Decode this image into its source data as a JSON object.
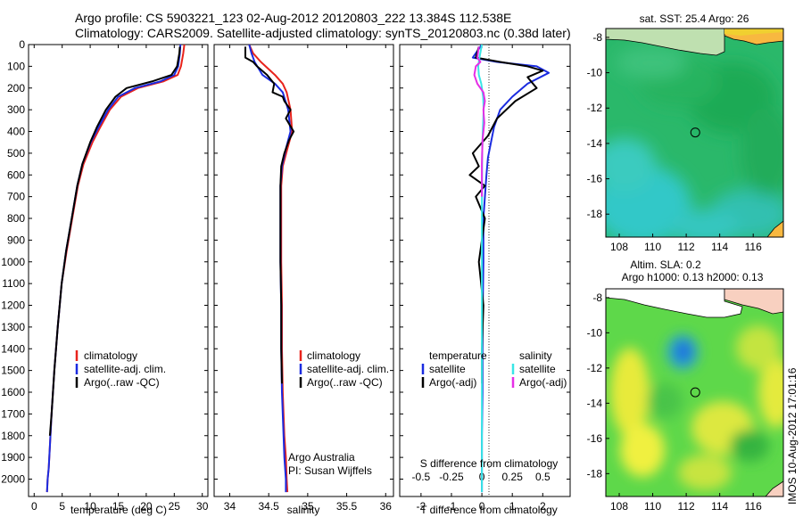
{
  "header": {
    "line1": "Argo profile: CS 5903221_123 02-Aug-2012 20120803_222 13.384S 112.538E",
    "line2": "Climatology: CARS2009. Satellite-adjusted climatology: synTS_20120803.nc (0.38d later)"
  },
  "credit": {
    "text1": "Argo Australia",
    "text2": "PI: Susan Wijffels",
    "stamp": "IMOS 10-Aug-2012 17:01:16"
  },
  "colors": {
    "climatology": "#e8231c",
    "satellite": "#1a2be0",
    "argo": "#000000",
    "sal_satellite": "#39e6e6",
    "sal_argo": "#e62ee6"
  },
  "chart_data": [
    {
      "type": "line",
      "xlabel": "temperature (deg C)",
      "ylabel": "",
      "xlim": [
        -1,
        31
      ],
      "ylim": [
        2080,
        0
      ],
      "xticks": [
        "0",
        "5",
        "10",
        "15",
        "20",
        "25",
        "30"
      ],
      "yticks": [
        "0",
        "100",
        "200",
        "300",
        "400",
        "500",
        "600",
        "700",
        "800",
        "900",
        "1000",
        "1100",
        "1200",
        "1300",
        "1400",
        "1500",
        "1600",
        "1700",
        "1800",
        "1900",
        "2000"
      ],
      "legend": {
        "placement": "middle-left",
        "entries": [
          "climatology",
          "satellite-adj. clim.",
          "Argo(..raw -QC)"
        ]
      },
      "series": [
        {
          "name": "climatology",
          "color": "#e8231c",
          "x": [
            26.8,
            26.6,
            26.2,
            25.6,
            23.0,
            18.5,
            15.5,
            13.5,
            11.8,
            10.4,
            8.8,
            7.8,
            6.8,
            5.8,
            4.9,
            4.2,
            3.6,
            3.1,
            2.8,
            2.6,
            2.4,
            2.3
          ],
          "y": [
            0,
            40,
            100,
            140,
            170,
            200,
            240,
            300,
            380,
            450,
            550,
            650,
            800,
            950,
            1100,
            1300,
            1500,
            1700,
            1850,
            1950,
            2000,
            2060
          ]
        },
        {
          "name": "satellite-adj. clim.",
          "color": "#1a2be0",
          "x": [
            26.1,
            26.0,
            25.7,
            25.0,
            22.5,
            18.0,
            15.0,
            13.2,
            11.5,
            10.1,
            8.6,
            7.7,
            6.7,
            5.7,
            4.9,
            4.2,
            3.6,
            3.1,
            2.8,
            2.6,
            2.4,
            2.3
          ],
          "y": [
            0,
            40,
            100,
            140,
            170,
            200,
            240,
            300,
            380,
            450,
            550,
            650,
            800,
            950,
            1100,
            1300,
            1500,
            1700,
            1850,
            1950,
            2000,
            2060
          ]
        },
        {
          "name": "Argo(..raw -QC)",
          "color": "#000000",
          "x": [
            26.0,
            25.9,
            25.5,
            24.5,
            21.0,
            16.5,
            14.5,
            12.8,
            11.2,
            10.0,
            8.6,
            7.7,
            6.7,
            5.7,
            4.9,
            4.2,
            3.6,
            3.1,
            2.8
          ],
          "y": [
            10,
            40,
            100,
            140,
            170,
            200,
            240,
            300,
            380,
            450,
            550,
            650,
            800,
            950,
            1100,
            1300,
            1500,
            1700,
            1800
          ]
        }
      ]
    },
    {
      "type": "line",
      "xlabel": "salinity",
      "ylabel": "",
      "xlim": [
        33.8,
        36.1
      ],
      "ylim": [
        2080,
        0
      ],
      "xticks": [
        "34",
        "34.5",
        "35",
        "35.5",
        "36"
      ],
      "legend": {
        "placement": "middle-left",
        "entries": [
          "climatology",
          "satellite-adj. clim.",
          "Argo(..raw -QC)"
        ]
      },
      "series": [
        {
          "name": "climatology",
          "color": "#e8231c",
          "x": [
            34.25,
            34.3,
            34.4,
            34.58,
            34.68,
            34.73,
            34.78,
            34.8,
            34.74,
            34.68,
            34.66,
            34.66,
            34.66,
            34.67,
            34.67,
            34.68,
            34.7,
            34.72,
            34.73,
            34.74
          ],
          "y": [
            0,
            40,
            80,
            140,
            180,
            220,
            300,
            400,
            480,
            560,
            650,
            800,
            1000,
            1200,
            1400,
            1600,
            1800,
            1900,
            2000,
            2060
          ]
        },
        {
          "name": "satellite-adj. clim.",
          "color": "#1a2be0",
          "x": [
            34.25,
            34.28,
            34.32,
            34.42,
            34.58,
            34.68,
            34.75,
            34.78,
            34.72,
            34.67,
            34.65,
            34.65,
            34.65,
            34.66,
            34.66,
            34.67,
            34.69,
            34.7,
            34.72,
            34.72
          ],
          "y": [
            0,
            40,
            80,
            140,
            180,
            220,
            300,
            400,
            480,
            560,
            650,
            800,
            1000,
            1200,
            1400,
            1600,
            1800,
            1900,
            2000,
            2060
          ]
        },
        {
          "name": "Argo(..raw -QC)",
          "color": "#000000",
          "x": [
            34.2,
            34.2,
            34.3,
            34.35,
            34.48,
            34.57,
            34.55,
            34.68,
            34.7,
            34.78,
            34.72,
            34.82,
            34.76,
            34.7,
            34.66,
            34.65,
            34.65,
            34.65,
            34.66,
            34.66,
            34.67
          ],
          "y": [
            10,
            60,
            80,
            100,
            140,
            180,
            220,
            240,
            260,
            300,
            340,
            400,
            440,
            500,
            560,
            650,
            800,
            1000,
            1200,
            1400,
            1560
          ]
        }
      ]
    },
    {
      "type": "line",
      "xlabel": "T difference from climatology",
      "x2label": "S difference from climatology",
      "xlim": [
        -2.7,
        2.9
      ],
      "x2lim": [
        -0.675,
        0.725
      ],
      "ylim": [
        2080,
        0
      ],
      "xticks": [
        "-2",
        "-1",
        "0",
        "1",
        "2"
      ],
      "x2ticks": [
        "-0.5",
        "-0.25",
        "0",
        "0.25",
        "0.5"
      ],
      "legend": {
        "placement": "middle",
        "entries": [
          "temperature",
          "satellite",
          "Argo(-adj)",
          "salinity",
          "satellite",
          "Argo(-adj)"
        ]
      },
      "series": [
        {
          "name": "satellite",
          "color": "#1a2be0",
          "x": [
            0,
            -0.3,
            0.5,
            1.8,
            2.2,
            1.5,
            1.0,
            0.6,
            0.4,
            0.3,
            0.2,
            0.15,
            0.1,
            0.05,
            0.05,
            0.03,
            0.02,
            0.02,
            0.0,
            0.0
          ],
          "y": [
            0,
            60,
            80,
            100,
            130,
            180,
            240,
            300,
            380,
            450,
            520,
            600,
            700,
            800,
            1000,
            1200,
            1400,
            1600,
            1800,
            2060
          ]
        },
        {
          "name": "Argo(-adj)",
          "color": "#000000",
          "x": [
            -0.1,
            -0.2,
            0.6,
            1.5,
            2.0,
            1.5,
            1.8,
            1.1,
            0.5,
            0.2,
            -0.3,
            -0.1,
            -0.4,
            0.1,
            -0.2,
            0.1,
            -0.1,
            0.05,
            0.0,
            0.0
          ],
          "y": [
            10,
            60,
            80,
            100,
            120,
            150,
            200,
            260,
            340,
            420,
            500,
            560,
            600,
            650,
            700,
            800,
            1000,
            1200,
            1400,
            1560
          ]
        },
        {
          "name": "salinity satellite",
          "color": "#39e6e6",
          "x": [
            0.0,
            -0.08,
            -0.12,
            -0.1,
            -0.02,
            0.04,
            0.06,
            0.03,
            0.01,
            0.0,
            0.0,
            0.0
          ],
          "y": [
            0,
            60,
            100,
            140,
            180,
            240,
            300,
            400,
            500,
            800,
            1500,
            2060
          ]
        },
        {
          "name": "salinity Argo(-adj)",
          "color": "#e62ee6",
          "x": [
            -0.1,
            -0.15,
            -0.05,
            -0.2,
            -0.25,
            -0.15,
            0.05,
            0.1,
            0.05,
            0.08,
            0.02,
            0.0,
            0.0
          ],
          "y": [
            10,
            60,
            80,
            100,
            140,
            180,
            220,
            260,
            300,
            360,
            440,
            550,
            700
          ]
        }
      ]
    },
    {
      "type": "heatmap",
      "title": "sat. SST: 25.4 Argo: 26",
      "xlim": [
        107.2,
        117.8
      ],
      "ylim": [
        -19.3,
        -7.5
      ],
      "xticks": [
        "108",
        "110",
        "112",
        "114",
        "116"
      ],
      "yticks": [
        "-8",
        "-10",
        "-12",
        "-14",
        "-16",
        "-18"
      ],
      "marker": {
        "lon": 112.54,
        "lat": -13.38
      }
    },
    {
      "type": "heatmap",
      "title": "Altim. SLA: 0.2",
      "subtitle": "Argo h1000: 0.13 h2000: 0.13",
      "xlim": [
        107.2,
        117.8
      ],
      "ylim": [
        -19.3,
        -7.5
      ],
      "xticks": [
        "108",
        "110",
        "112",
        "114",
        "116"
      ],
      "yticks": [
        "-8",
        "-10",
        "-12",
        "-14",
        "-16",
        "-18"
      ],
      "marker": {
        "lon": 112.54,
        "lat": -13.38
      }
    }
  ]
}
